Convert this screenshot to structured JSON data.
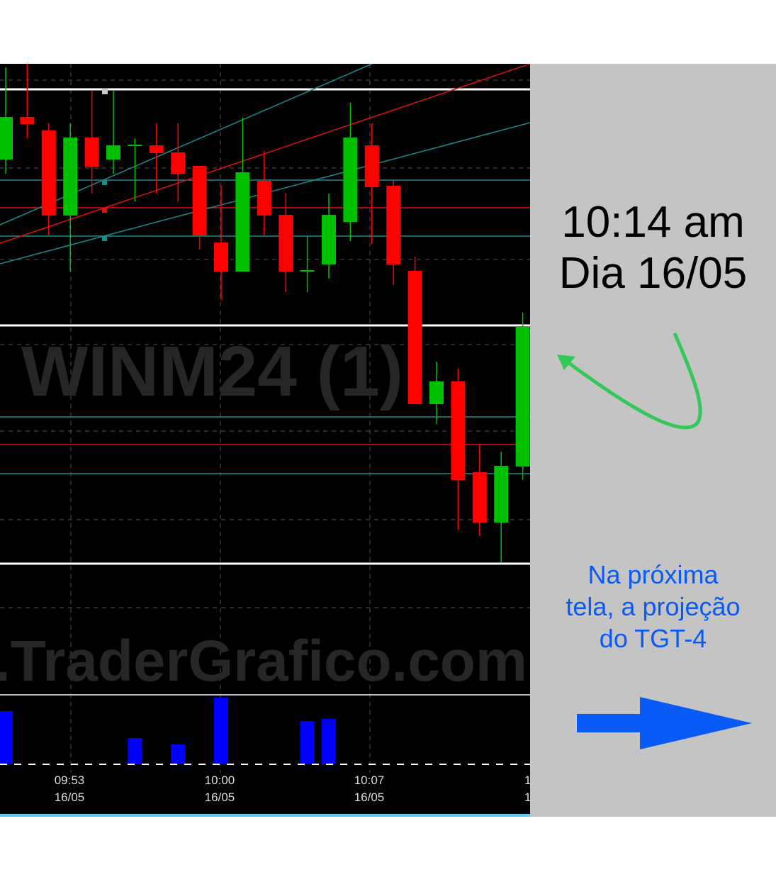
{
  "chart_data": {
    "type": "candlestick",
    "symbol_watermark": "WINM24 (1)",
    "site_watermark": ".TraderGrafico.com",
    "x_tick_labels": [
      {
        "time": "09:53",
        "date": "16/05"
      },
      {
        "time": "10:00",
        "date": "16/05"
      },
      {
        "time": "10:07",
        "date": "16/05"
      },
      {
        "time": "1",
        "date": "1"
      }
    ],
    "price_axis_visible": false,
    "candles": [
      {
        "open": 775,
        "high": 905,
        "low": 755,
        "close": 835
      },
      {
        "open": 835,
        "high": 910,
        "low": 805,
        "close": 825
      },
      {
        "open": 816,
        "high": 826,
        "low": 668,
        "close": 696
      },
      {
        "open": 696,
        "high": 826,
        "low": 617,
        "close": 806
      },
      {
        "open": 806,
        "high": 872,
        "low": 727,
        "close": 765
      },
      {
        "open": 775,
        "high": 872,
        "low": 755,
        "close": 795
      },
      {
        "open": 795,
        "high": 805,
        "low": 716,
        "close": 796
      },
      {
        "open": 795,
        "high": 826,
        "low": 727,
        "close": 784
      },
      {
        "open": 785,
        "high": 826,
        "low": 716,
        "close": 755
      },
      {
        "open": 766,
        "high": 766,
        "low": 648,
        "close": 668
      },
      {
        "open": 658,
        "high": 738,
        "low": 577,
        "close": 617
      },
      {
        "open": 617,
        "high": 834,
        "low": 617,
        "close": 757
      },
      {
        "open": 745,
        "high": 787,
        "low": 668,
        "close": 696
      },
      {
        "open": 697,
        "high": 728,
        "low": 588,
        "close": 617
      },
      {
        "open": 618,
        "high": 667,
        "low": 588,
        "close": 619
      },
      {
        "open": 627,
        "high": 727,
        "low": 607,
        "close": 697
      },
      {
        "open": 687,
        "high": 855,
        "low": 660,
        "close": 806
      },
      {
        "open": 795,
        "high": 826,
        "low": 656,
        "close": 736
      },
      {
        "open": 738,
        "high": 745,
        "low": 598,
        "close": 627
      },
      {
        "open": 618,
        "high": 638,
        "low": 430,
        "close": 430
      },
      {
        "open": 430,
        "high": 490,
        "low": 402,
        "close": 462
      },
      {
        "open": 462,
        "high": 480,
        "low": 253,
        "close": 323
      },
      {
        "open": 334,
        "high": 373,
        "low": 244,
        "close": 263
      },
      {
        "open": 263,
        "high": 363,
        "low": 207,
        "close": 343
      },
      {
        "open": 342,
        "high": 559,
        "low": 323,
        "close": 539
      }
    ],
    "volume": [
      75,
      0,
      0,
      0,
      0,
      0,
      37,
      0,
      28,
      0,
      94,
      0,
      0,
      0,
      61,
      64,
      0,
      0,
      0,
      0,
      0,
      0,
      0,
      0,
      0
    ],
    "horizontal_levels": [
      {
        "price": 874,
        "color": "#ffffff"
      },
      {
        "price": 541,
        "color": "#ffffff"
      },
      {
        "price": 205,
        "color": "#ffffff"
      },
      {
        "price": 746,
        "color": "#1a8a8a"
      },
      {
        "price": 667,
        "color": "#1a8a8a"
      },
      {
        "price": 412,
        "color": "#1a8a8a"
      },
      {
        "price": 332,
        "color": "#1a8a8a"
      },
      {
        "price": 707,
        "color": "#e01010"
      },
      {
        "price": 373,
        "color": "#e01010"
      }
    ],
    "colors": {
      "up": "#00c000",
      "down": "#ff0000",
      "volume": "#0000ff",
      "background": "#000000"
    }
  },
  "annotation": {
    "time": "10:14 am",
    "day": "Dia 16/05",
    "note_lines": [
      "Na próxima",
      "tela, a projeção",
      "do TGT-4"
    ],
    "note_color": "#0a5bf5",
    "curved_arrow_color": "#34c759",
    "right_arrow_color": "#0a5bf5"
  }
}
